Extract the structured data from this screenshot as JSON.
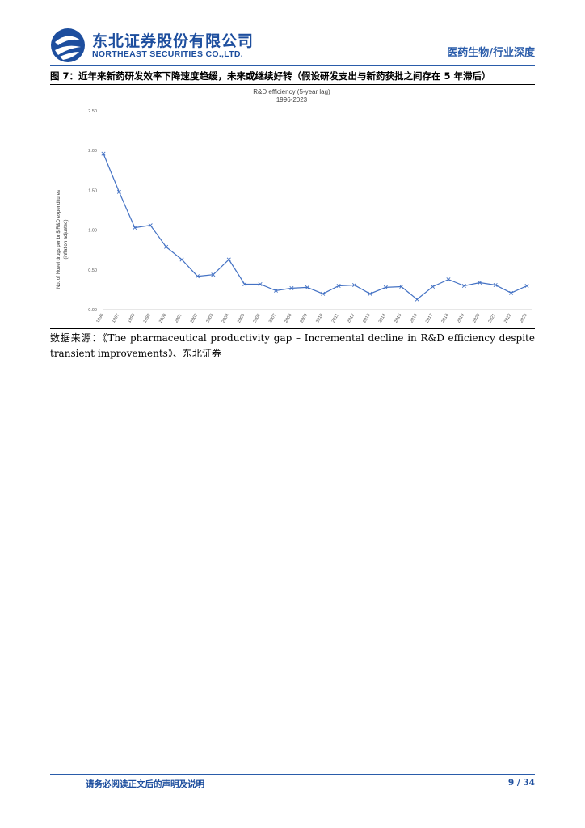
{
  "header": {
    "company_cn": "东北证券股份有限公司",
    "company_en": "NORTHEAST SECURITIES CO.,LTD.",
    "report_type": "医药生物/行业深度",
    "brand_color": "#1d4e9e",
    "logo_icon": "northeast-securities-logo"
  },
  "figure": {
    "title": "图 7：近年来新药研发效率下降速度趋缓，未来或继续好转（假设研发支出与新药获批之间存在 5 年滞后）"
  },
  "chart_data": {
    "type": "line",
    "title": "R&D efficiency (5-year lag)",
    "subtitle": "1996-2023",
    "xlabel": "",
    "ylabel": "No. of Novel drugs per bn$ R&D expenditures",
    "ylabel2": "(inflation adjusted)",
    "ylim": [
      0,
      2.5
    ],
    "yticks": [
      "0.00",
      "0.50",
      "1.00",
      "1.50",
      "2.00",
      "2.50"
    ],
    "grid": false,
    "legend": "none",
    "marker": "x",
    "line_color": "#4472c4",
    "categories": [
      "1996",
      "1997",
      "1998",
      "1999",
      "2000",
      "2001",
      "2002",
      "2003",
      "2004",
      "2005",
      "2006",
      "2007",
      "2008",
      "2009",
      "2010",
      "2011",
      "2012",
      "2013",
      "2014",
      "2015",
      "2016",
      "2017",
      "2018",
      "2019",
      "2020",
      "2021",
      "2022",
      "2023"
    ],
    "values": [
      1.96,
      1.48,
      1.03,
      1.06,
      0.79,
      0.63,
      0.42,
      0.44,
      0.63,
      0.32,
      0.32,
      0.24,
      0.27,
      0.28,
      0.2,
      0.3,
      0.31,
      0.2,
      0.28,
      0.29,
      0.13,
      0.29,
      0.38,
      0.3,
      0.34,
      0.31,
      0.21,
      0.3
    ]
  },
  "source": {
    "text": "数据来源：《The pharmaceutical productivity gap – Incremental decline in R&D efficiency despite transient improvements》、东北证券"
  },
  "footer": {
    "note": "请务必阅读正文后的声明及说明",
    "page": "9 / 34"
  }
}
